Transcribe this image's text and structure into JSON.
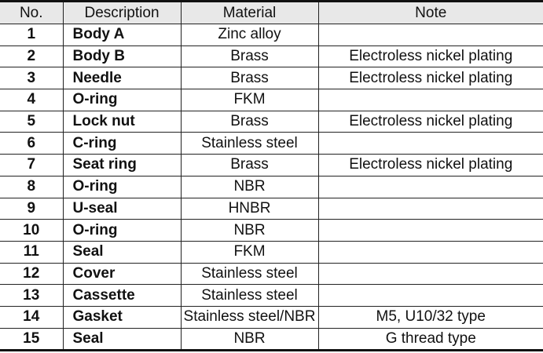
{
  "headers": [
    "No.",
    "Description",
    "Material",
    "Note"
  ],
  "rows": [
    {
      "no": "1",
      "description": "Body A",
      "material": "Zinc alloy",
      "note": ""
    },
    {
      "no": "2",
      "description": "Body B",
      "material": "Brass",
      "note": "Electroless nickel plating"
    },
    {
      "no": "3",
      "description": "Needle",
      "material": "Brass",
      "note": "Electroless nickel plating"
    },
    {
      "no": "4",
      "description": "O-ring",
      "material": "FKM",
      "note": ""
    },
    {
      "no": "5",
      "description": "Lock nut",
      "material": "Brass",
      "note": "Electroless nickel plating"
    },
    {
      "no": "6",
      "description": "C-ring",
      "material": "Stainless steel",
      "note": ""
    },
    {
      "no": "7",
      "description": "Seat ring",
      "material": "Brass",
      "note": "Electroless nickel plating"
    },
    {
      "no": "8",
      "description": "O-ring",
      "material": "NBR",
      "note": ""
    },
    {
      "no": "9",
      "description": "U-seal",
      "material": "HNBR",
      "note": ""
    },
    {
      "no": "10",
      "description": "O-ring",
      "material": "NBR",
      "note": ""
    },
    {
      "no": "11",
      "description": "Seal",
      "material": "FKM",
      "note": ""
    },
    {
      "no": "12",
      "description": "Cover",
      "material": "Stainless steel",
      "note": ""
    },
    {
      "no": "13",
      "description": "Cassette",
      "material": "Stainless steel",
      "note": ""
    },
    {
      "no": "14",
      "description": "Gasket",
      "material": "Stainless steel/NBR",
      "note": "M5, U10/32 type"
    },
    {
      "no": "15",
      "description": "Seal",
      "material": "NBR",
      "note": "G thread type"
    }
  ]
}
